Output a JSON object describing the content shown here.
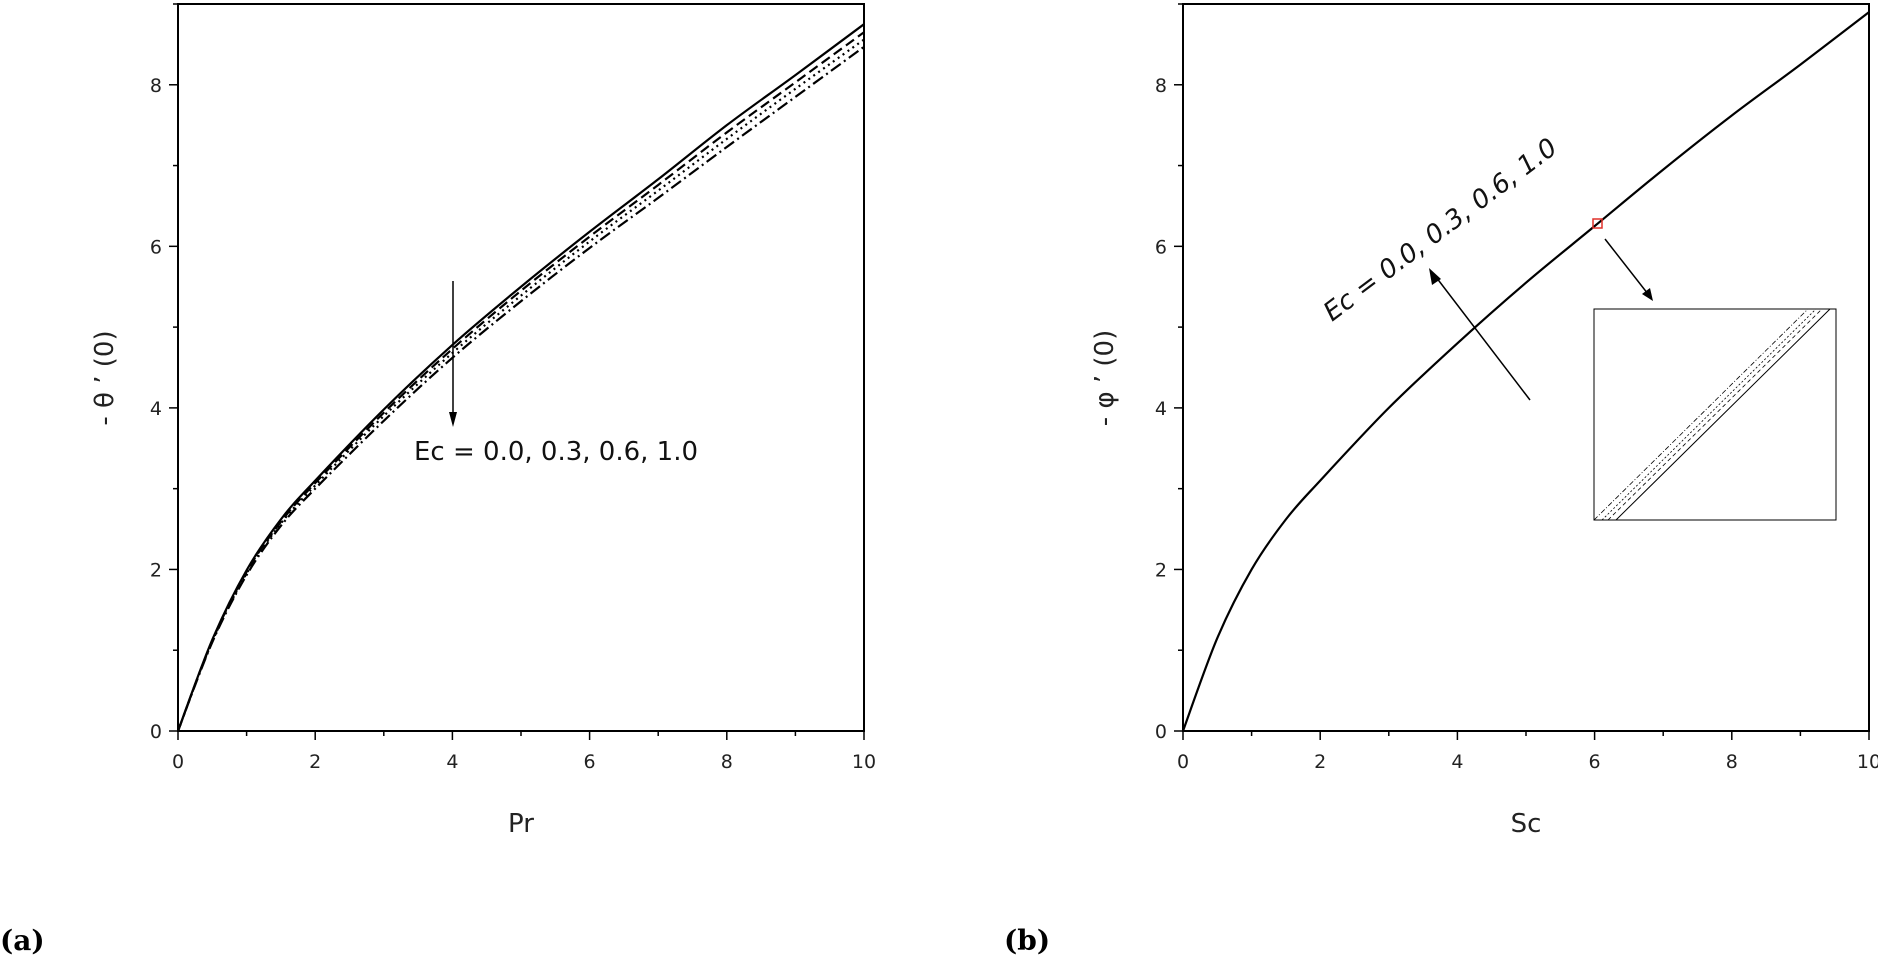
{
  "panel_labels": [
    "(a)",
    "(b)"
  ],
  "chart_data": [
    {
      "type": "line",
      "panel": "(a)",
      "xlabel": "Pr",
      "ylabel": "- θ ’ (0)",
      "xlim": [
        0,
        10
      ],
      "ylim": [
        0,
        9
      ],
      "xticks": [
        0,
        2,
        4,
        6,
        8,
        10
      ],
      "yticks": [
        0,
        2,
        4,
        6,
        8
      ],
      "grid": false,
      "annotation": "Ec = 0.0, 0.3, 0.6, 1.0",
      "x": [
        0,
        0.5,
        1,
        1.5,
        2,
        3,
        4,
        5,
        6,
        7,
        8,
        9,
        10
      ],
      "series": [
        {
          "values": [
            0,
            1.13,
            1.99,
            2.62,
            3.1,
            3.98,
            4.78,
            5.5,
            6.18,
            6.83,
            7.5,
            8.12,
            8.75
          ],
          "style": "solid"
        },
        {
          "values": [
            0,
            1.12,
            1.97,
            2.59,
            3.07,
            3.94,
            4.73,
            5.45,
            6.12,
            6.76,
            7.41,
            8.03,
            8.65
          ],
          "style": "dashed"
        },
        {
          "values": [
            0,
            1.11,
            1.95,
            2.57,
            3.04,
            3.9,
            4.68,
            5.39,
            6.06,
            6.69,
            7.33,
            7.95,
            8.56
          ],
          "style": "dotted"
        },
        {
          "values": [
            0,
            1.1,
            1.93,
            2.54,
            3.0,
            3.84,
            4.62,
            5.32,
            5.98,
            6.6,
            7.23,
            7.85,
            8.47
          ],
          "style": "dashdot"
        }
      ]
    },
    {
      "type": "line",
      "panel": "(b)",
      "xlabel": "Sc",
      "ylabel": "- φ ’ (0)",
      "xlim": [
        0,
        10
      ],
      "ylim": [
        0,
        9
      ],
      "xticks": [
        0,
        2,
        4,
        6,
        8,
        10
      ],
      "yticks": [
        0,
        2,
        4,
        6,
        8
      ],
      "grid": false,
      "annotation": "Ec = 0.0, 0.3, 0.6, 1.0",
      "x": [
        0,
        0.5,
        1,
        1.5,
        2,
        3,
        4,
        5,
        6,
        7,
        8,
        9,
        10
      ],
      "series": [
        {
          "values": [
            0,
            1.15,
            2.0,
            2.62,
            3.1,
            4.0,
            4.8,
            5.55,
            6.25,
            6.95,
            7.62,
            8.25,
            8.9
          ],
          "style": "solid"
        }
      ]
    }
  ]
}
